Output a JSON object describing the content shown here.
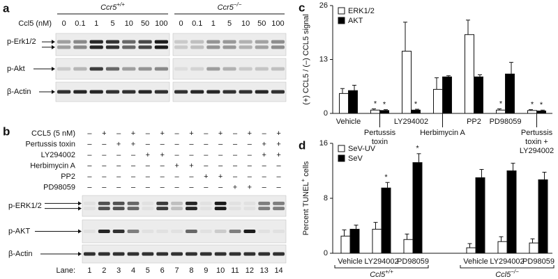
{
  "panel_a": {
    "label": "a",
    "concentration_label": "Ccl5 (nM)",
    "genotypes": [
      {
        "name": "Ccr5",
        "sup": "+/+"
      },
      {
        "name": "Ccr5",
        "sup": "−/−"
      }
    ],
    "concentrations": [
      "0",
      "0.1",
      "1",
      "5",
      "10",
      "50",
      "100"
    ],
    "rows": [
      "p-Erk1/2",
      "p-Akt",
      "β-Actin"
    ]
  },
  "panel_b": {
    "label": "b",
    "treatments": [
      {
        "name": "CCL5 (5 nM)",
        "lanes": [
          "–",
          "+",
          "–",
          "+",
          "–",
          "+",
          "–",
          "+",
          "–",
          "+",
          "–",
          "+",
          "–",
          "+"
        ]
      },
      {
        "name": "Pertussis toxin",
        "lanes": [
          "–",
          "–",
          "+",
          "+",
          "–",
          "–",
          "–",
          "–",
          "–",
          "–",
          "–",
          "–",
          "+",
          "+"
        ]
      },
      {
        "name": "LY294002",
        "lanes": [
          "–",
          "–",
          "–",
          "–",
          "+",
          "+",
          "–",
          "–",
          "–",
          "–",
          "–",
          "–",
          "+",
          "+"
        ]
      },
      {
        "name": "Herbimycin A",
        "lanes": [
          "–",
          "–",
          "–",
          "–",
          "–",
          "–",
          "+",
          "+",
          "–",
          "–",
          "–",
          "–",
          "–",
          "–"
        ]
      },
      {
        "name": "PP2",
        "lanes": [
          "–",
          "–",
          "–",
          "–",
          "–",
          "–",
          "–",
          "–",
          "+",
          "+",
          "–",
          "–",
          "–",
          "–"
        ]
      },
      {
        "name": "PD98059",
        "lanes": [
          "–",
          "–",
          "–",
          "–",
          "–",
          "–",
          "–",
          "–",
          "–",
          "–",
          "+",
          "+",
          "–",
          "–"
        ]
      }
    ],
    "rows": [
      "p-ERK1/2",
      "p-AKT",
      "β-Actin"
    ],
    "lane_label": "Lane:",
    "lanes": [
      "1",
      "2",
      "3",
      "4",
      "5",
      "6",
      "7",
      "8",
      "9",
      "10",
      "11",
      "12",
      "13",
      "14"
    ]
  },
  "chart_data": [
    {
      "type": "bar",
      "panel_label": "c",
      "ylabel": "(+) CCL5 / (–) CCL5 signal",
      "categories": [
        [
          "Vehicle"
        ],
        [
          "Pertussis",
          "toxin"
        ],
        [
          "LY294002"
        ],
        [
          "Herbimycin A"
        ],
        [
          "PP2"
        ],
        [
          "PD98059"
        ],
        [
          "Pertussis",
          "toxin +",
          "LY294002"
        ]
      ],
      "ylim": [
        0,
        26
      ],
      "yticks": [
        0,
        13,
        26
      ],
      "legend": "upper left",
      "series": [
        {
          "name": "ERK1/2",
          "color": "#ffffff",
          "values": [
            4.8,
            0.8,
            15,
            5.8,
            19,
            0.8,
            0.7
          ],
          "errors": [
            1.2,
            0.3,
            7,
            2.8,
            3.5,
            0.3,
            0.2
          ],
          "significance": [
            null,
            "*",
            null,
            null,
            null,
            "*",
            "*"
          ]
        },
        {
          "name": "AKT",
          "color": "#000000",
          "values": [
            5.5,
            0.7,
            0.8,
            8.8,
            8.8,
            9.5,
            0.6
          ],
          "errors": [
            1.3,
            0.2,
            0.2,
            0.3,
            0.5,
            2.8,
            0.2
          ],
          "significance": [
            null,
            "*",
            "*",
            null,
            null,
            null,
            "*"
          ]
        }
      ]
    },
    {
      "type": "bar",
      "panel_label": "d",
      "ylabel": {
        "text": "Percent TUNEL",
        "sup": "+",
        "after": " cells"
      },
      "categories": [
        "Vehicle",
        "LY294002",
        "PD98059",
        "Vehicle",
        "LY294002",
        "PD98059"
      ],
      "groups": [
        {
          "name": "Ccl5",
          "sup": "+/+"
        },
        {
          "name": "Ccl5",
          "sup": "−/−"
        }
      ],
      "ylim": [
        0,
        16
      ],
      "yticks": [
        0,
        8,
        16
      ],
      "legend": "upper left",
      "series": [
        {
          "name": "SeV-UV",
          "color": "#ffffff",
          "values": [
            2.5,
            3.5,
            2,
            0.8,
            1.7,
            1.5
          ],
          "errors": [
            0.9,
            1,
            0.8,
            0.6,
            0.7,
            0.6
          ],
          "significance": [
            null,
            null,
            null,
            null,
            null,
            null
          ]
        },
        {
          "name": "SeV",
          "color": "#000000",
          "values": [
            3.5,
            9.5,
            13.2,
            11,
            12,
            10.7
          ],
          "errors": [
            0.6,
            0.8,
            1.3,
            1.2,
            1.1,
            1.1
          ],
          "significance": [
            null,
            "*",
            "*",
            null,
            null,
            null
          ]
        }
      ]
    }
  ]
}
